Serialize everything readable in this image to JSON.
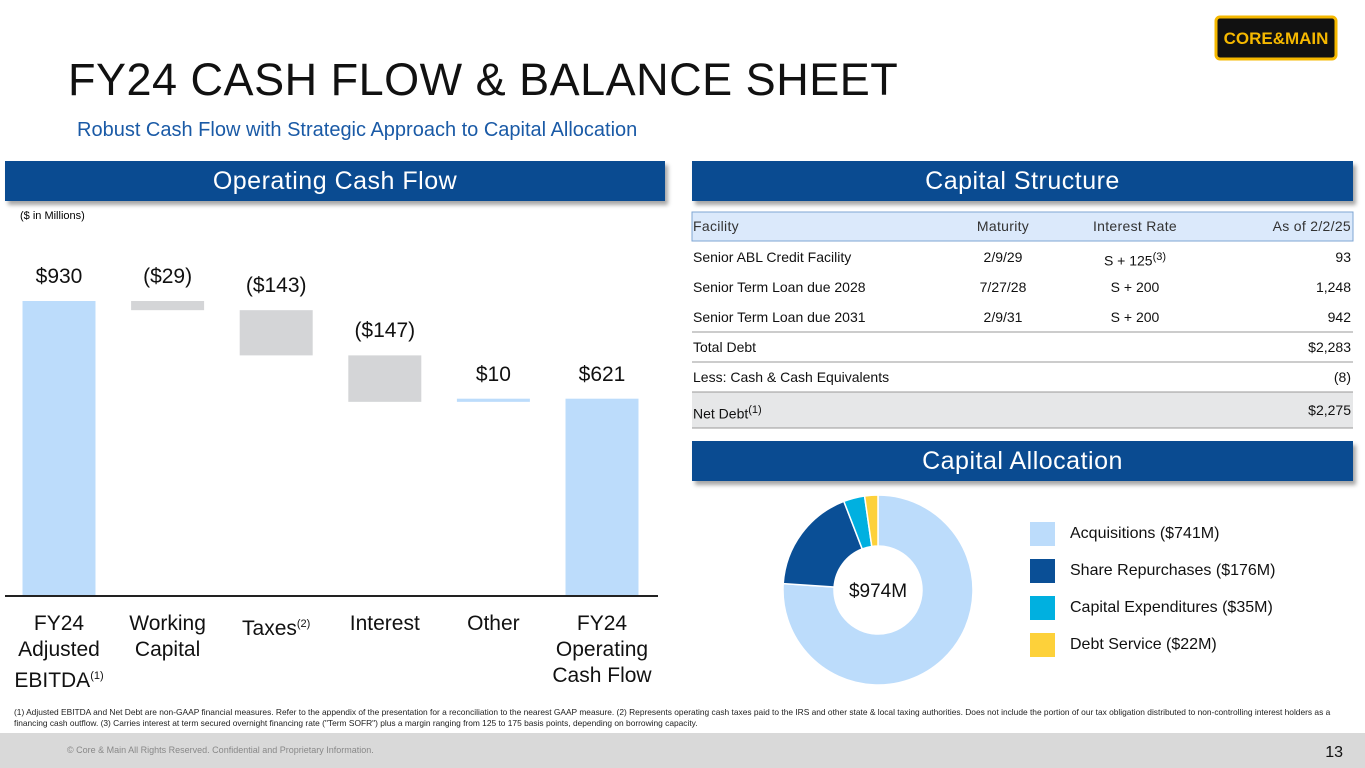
{
  "logo": "CORE&MAIN",
  "title": "FY24 CASH FLOW & BALANCE SHEET",
  "subtitle": "Robust Cash Flow with Strategic Approach to Capital Allocation",
  "sections": [
    "Operating Cash Flow",
    "Capital Structure",
    "Capital Allocation"
  ],
  "chart_data": [
    {
      "type": "waterfall",
      "unit_note": "($ in Millions)",
      "categories": [
        "FY24 Adjusted EBITDA",
        "Working Capital",
        "Taxes",
        "Interest",
        "Other",
        "FY24 Operating Cash Flow"
      ],
      "category_notes": [
        "(1)",
        null,
        "(2)",
        null,
        null,
        null
      ],
      "values": [
        930,
        -29,
        -143,
        -147,
        10,
        621
      ],
      "value_labels": [
        "$930",
        "($29)",
        "($143)",
        "($147)",
        "$10",
        "$621"
      ],
      "totals": [
        true,
        false,
        false,
        false,
        false,
        true
      ],
      "color": "#bcdcfb",
      "decrease_color": "#d4d5d7"
    },
    {
      "type": "pie",
      "center_label": "$974M",
      "labels": [
        "Acquisitions ($741M)",
        "Share Repurchases ($176M)",
        "Capital Expenditures ($35M)",
        "Debt Service ($22M)"
      ],
      "values": [
        741,
        176,
        35,
        22
      ],
      "colors": [
        "#bcdcfb",
        "#0a4f96",
        "#00b0e0",
        "#fdd13a"
      ]
    }
  ],
  "table": {
    "columns": [
      "Facility",
      "Maturity",
      "Interest Rate",
      "As of 2/2/25"
    ],
    "rows": [
      [
        "Senior ABL Credit Facility",
        "2/9/29",
        {
          "text": "S + 125",
          "note": "(3)"
        },
        "93"
      ],
      [
        "Senior Term Loan due 2028",
        "7/27/28",
        "S + 200",
        "1,248"
      ],
      [
        "Senior Term Loan due 2031",
        "2/9/31",
        "S + 200",
        "942"
      ],
      [
        "Total Debt",
        null,
        null,
        "$2,283"
      ],
      [
        "Less: Cash & Cash Equivalents",
        null,
        null,
        "(8)"
      ],
      [
        {
          "text": "Net Debt",
          "note": "(1)"
        },
        null,
        null,
        "$2,275"
      ]
    ]
  },
  "footnote": "(1) Adjusted EBITDA and Net Debt are non-GAAP financial measures. Refer to the appendix of the presentation for a reconciliation to the nearest GAAP measure. (2) Represents operating cash taxes paid to the IRS and other state & local taxing authorities. Does not include the portion of our tax obligation distributed to non-controlling interest holders as a financing cash outflow. (3) Carries interest at term secured overnight financing rate (\"Term SOFR\") plus a margin ranging from 125 to 175 basis points, depending on borrowing capacity.",
  "copyright": "© Core & Main All Rights Reserved. Confidential and Proprietary Information.",
  "page_number": 13
}
